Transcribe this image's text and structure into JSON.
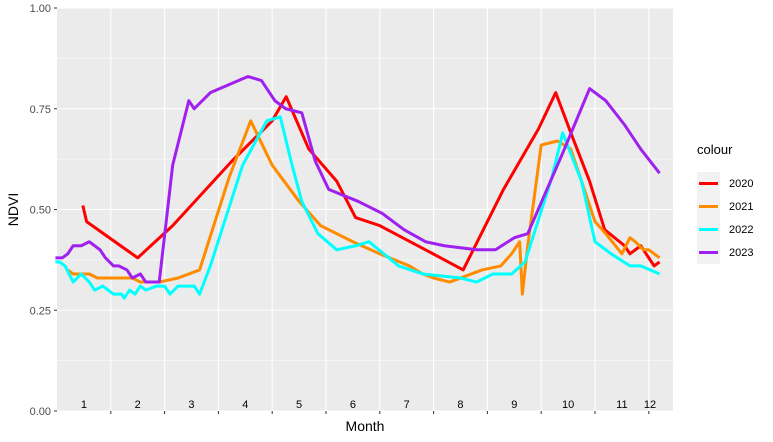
{
  "chart_data": {
    "type": "line",
    "xlabel": "Month",
    "ylabel": "NDVI",
    "xlim": [
      1,
      12.45
    ],
    "ylim": [
      0,
      1
    ],
    "y_ticks": [
      {
        "value": 0.0,
        "label": "0.00"
      },
      {
        "value": 0.25,
        "label": "0.25"
      },
      {
        "value": 0.5,
        "label": "0.50"
      },
      {
        "value": 0.75,
        "label": "0.75"
      },
      {
        "value": 1.0,
        "label": "1.00"
      }
    ],
    "x_ticks": [
      {
        "value": 1.5,
        "label": "1"
      },
      {
        "value": 2.5,
        "label": "2"
      },
      {
        "value": 3.5,
        "label": "3"
      },
      {
        "value": 4.5,
        "label": "4"
      },
      {
        "value": 5.5,
        "label": "5"
      },
      {
        "value": 6.5,
        "label": "6"
      },
      {
        "value": 7.5,
        "label": "7"
      },
      {
        "value": 8.5,
        "label": "8"
      },
      {
        "value": 9.5,
        "label": "9"
      },
      {
        "value": 10.5,
        "label": "10"
      },
      {
        "value": 11.5,
        "label": "11"
      },
      {
        "value": 12.5,
        "label": "12"
      }
    ],
    "x_tick_positions": [
      2,
      3,
      4,
      5,
      6,
      7,
      8,
      9,
      10,
      11,
      12
    ],
    "grid": true,
    "legend": {
      "title": "colour",
      "position": "right"
    },
    "series": [
      {
        "name": "2020",
        "color": "#ff0000",
        "points": [
          [
            1.48,
            0.51
          ],
          [
            1.55,
            0.47
          ],
          [
            2.5,
            0.38
          ],
          [
            3.15,
            0.46
          ],
          [
            4.25,
            0.62
          ],
          [
            5.0,
            0.72
          ],
          [
            5.26,
            0.78
          ],
          [
            5.68,
            0.65
          ],
          [
            6.2,
            0.57
          ],
          [
            6.55,
            0.48
          ],
          [
            7.0,
            0.46
          ],
          [
            7.85,
            0.4
          ],
          [
            8.55,
            0.35
          ],
          [
            9.3,
            0.55
          ],
          [
            9.95,
            0.7
          ],
          [
            10.27,
            0.79
          ],
          [
            10.58,
            0.68
          ],
          [
            10.9,
            0.57
          ],
          [
            11.18,
            0.45
          ],
          [
            11.55,
            0.41
          ],
          [
            11.65,
            0.39
          ],
          [
            11.85,
            0.41
          ],
          [
            12.0,
            0.38
          ],
          [
            12.1,
            0.36
          ],
          [
            12.2,
            0.37
          ]
        ]
      },
      {
        "name": "2021",
        "color": "#ff8c00",
        "points": [
          [
            1.2,
            0.35
          ],
          [
            1.3,
            0.34
          ],
          [
            1.6,
            0.34
          ],
          [
            1.75,
            0.33
          ],
          [
            2.4,
            0.33
          ],
          [
            2.55,
            0.32
          ],
          [
            2.9,
            0.32
          ],
          [
            3.25,
            0.33
          ],
          [
            3.65,
            0.35
          ],
          [
            4.2,
            0.58
          ],
          [
            4.6,
            0.72
          ],
          [
            5.0,
            0.61
          ],
          [
            5.5,
            0.52
          ],
          [
            5.9,
            0.46
          ],
          [
            6.5,
            0.42
          ],
          [
            7.0,
            0.39
          ],
          [
            7.55,
            0.36
          ],
          [
            7.8,
            0.34
          ],
          [
            8.0,
            0.33
          ],
          [
            8.3,
            0.32
          ],
          [
            8.9,
            0.35
          ],
          [
            9.25,
            0.36
          ],
          [
            9.45,
            0.39
          ],
          [
            9.6,
            0.42
          ],
          [
            9.65,
            0.29
          ],
          [
            9.75,
            0.41
          ],
          [
            10.0,
            0.66
          ],
          [
            10.3,
            0.67
          ],
          [
            10.55,
            0.65
          ],
          [
            11.0,
            0.47
          ],
          [
            11.2,
            0.44
          ],
          [
            11.5,
            0.39
          ],
          [
            11.65,
            0.43
          ],
          [
            11.75,
            0.42
          ],
          [
            11.9,
            0.4
          ],
          [
            12.0,
            0.4
          ],
          [
            12.2,
            0.38
          ]
        ]
      },
      {
        "name": "2022",
        "color": "#00ffff",
        "points": [
          [
            0.97,
            0.37
          ],
          [
            1.05,
            0.37
          ],
          [
            1.15,
            0.36
          ],
          [
            1.3,
            0.32
          ],
          [
            1.45,
            0.34
          ],
          [
            1.6,
            0.32
          ],
          [
            1.7,
            0.3
          ],
          [
            1.85,
            0.31
          ],
          [
            2.05,
            0.29
          ],
          [
            2.2,
            0.29
          ],
          [
            2.25,
            0.28
          ],
          [
            2.35,
            0.3
          ],
          [
            2.45,
            0.29
          ],
          [
            2.55,
            0.31
          ],
          [
            2.65,
            0.3
          ],
          [
            2.85,
            0.31
          ],
          [
            3.0,
            0.31
          ],
          [
            3.1,
            0.29
          ],
          [
            3.25,
            0.31
          ],
          [
            3.55,
            0.31
          ],
          [
            3.65,
            0.29
          ],
          [
            3.85,
            0.36
          ],
          [
            4.45,
            0.61
          ],
          [
            4.9,
            0.72
          ],
          [
            5.15,
            0.73
          ],
          [
            5.35,
            0.62
          ],
          [
            5.55,
            0.52
          ],
          [
            5.85,
            0.44
          ],
          [
            6.2,
            0.4
          ],
          [
            6.55,
            0.41
          ],
          [
            6.8,
            0.42
          ],
          [
            7.35,
            0.36
          ],
          [
            7.8,
            0.34
          ],
          [
            8.5,
            0.33
          ],
          [
            8.8,
            0.32
          ],
          [
            9.1,
            0.34
          ],
          [
            9.45,
            0.34
          ],
          [
            9.7,
            0.37
          ],
          [
            10.2,
            0.58
          ],
          [
            10.4,
            0.69
          ],
          [
            10.75,
            0.57
          ],
          [
            11.0,
            0.42
          ],
          [
            11.3,
            0.39
          ],
          [
            11.65,
            0.36
          ],
          [
            11.85,
            0.36
          ],
          [
            12.2,
            0.34
          ]
        ]
      },
      {
        "name": "2023",
        "color": "#a020f0",
        "points": [
          [
            0.97,
            0.38
          ],
          [
            1.1,
            0.38
          ],
          [
            1.2,
            0.39
          ],
          [
            1.3,
            0.41
          ],
          [
            1.45,
            0.41
          ],
          [
            1.6,
            0.42
          ],
          [
            1.8,
            0.4
          ],
          [
            1.9,
            0.38
          ],
          [
            2.05,
            0.36
          ],
          [
            2.15,
            0.36
          ],
          [
            2.3,
            0.35
          ],
          [
            2.4,
            0.33
          ],
          [
            2.55,
            0.34
          ],
          [
            2.65,
            0.32
          ],
          [
            2.9,
            0.32
          ],
          [
            3.15,
            0.61
          ],
          [
            3.45,
            0.77
          ],
          [
            3.55,
            0.75
          ],
          [
            3.85,
            0.79
          ],
          [
            4.55,
            0.83
          ],
          [
            4.8,
            0.82
          ],
          [
            5.05,
            0.77
          ],
          [
            5.25,
            0.75
          ],
          [
            5.55,
            0.74
          ],
          [
            5.8,
            0.62
          ],
          [
            6.05,
            0.55
          ],
          [
            6.6,
            0.52
          ],
          [
            7.05,
            0.49
          ],
          [
            7.45,
            0.45
          ],
          [
            7.85,
            0.42
          ],
          [
            8.2,
            0.41
          ],
          [
            8.8,
            0.4
          ],
          [
            9.15,
            0.4
          ],
          [
            9.5,
            0.43
          ],
          [
            9.75,
            0.44
          ],
          [
            10.4,
            0.64
          ],
          [
            10.9,
            0.8
          ],
          [
            11.2,
            0.77
          ],
          [
            11.55,
            0.71
          ],
          [
            11.85,
            0.65
          ],
          [
            12.2,
            0.59
          ]
        ]
      }
    ]
  }
}
